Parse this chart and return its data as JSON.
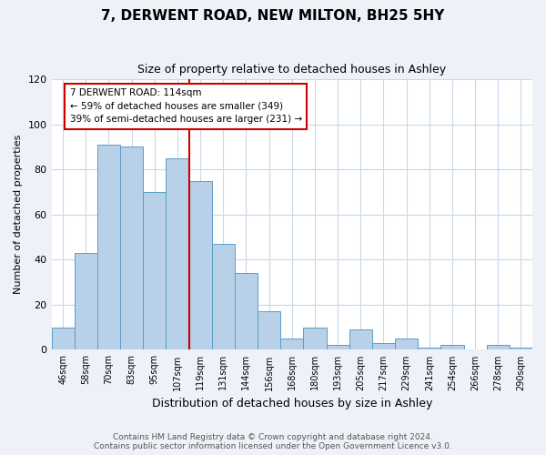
{
  "title": "7, DERWENT ROAD, NEW MILTON, BH25 5HY",
  "subtitle": "Size of property relative to detached houses in Ashley",
  "xlabel": "Distribution of detached houses by size in Ashley",
  "ylabel": "Number of detached properties",
  "bin_labels": [
    "46sqm",
    "58sqm",
    "70sqm",
    "83sqm",
    "95sqm",
    "107sqm",
    "119sqm",
    "131sqm",
    "144sqm",
    "156sqm",
    "168sqm",
    "180sqm",
    "193sqm",
    "205sqm",
    "217sqm",
    "229sqm",
    "241sqm",
    "254sqm",
    "266sqm",
    "278sqm",
    "290sqm"
  ],
  "bar_values": [
    10,
    43,
    91,
    90,
    70,
    85,
    75,
    47,
    34,
    17,
    5,
    10,
    2,
    9,
    3,
    5,
    1,
    2,
    0,
    2,
    1
  ],
  "bar_color": "#b8d0e8",
  "bar_edge_color": "#5a9dc8",
  "vline_x_index": 5.5,
  "vline_color": "#cc0000",
  "annotation_text": "7 DERWENT ROAD: 114sqm\n← 59% of detached houses are smaller (349)\n39% of semi-detached houses are larger (231) →",
  "annotation_box_color": "#ffffff",
  "annotation_box_edge_color": "#cc0000",
  "ylim": [
    0,
    120
  ],
  "yticks": [
    0,
    20,
    40,
    60,
    80,
    100,
    120
  ],
  "footer_text": "Contains HM Land Registry data © Crown copyright and database right 2024.\nContains public sector information licensed under the Open Government Licence v3.0.",
  "bg_color": "#eef2f8",
  "plot_bg_color": "#ffffff",
  "grid_color": "#c8d8e8"
}
